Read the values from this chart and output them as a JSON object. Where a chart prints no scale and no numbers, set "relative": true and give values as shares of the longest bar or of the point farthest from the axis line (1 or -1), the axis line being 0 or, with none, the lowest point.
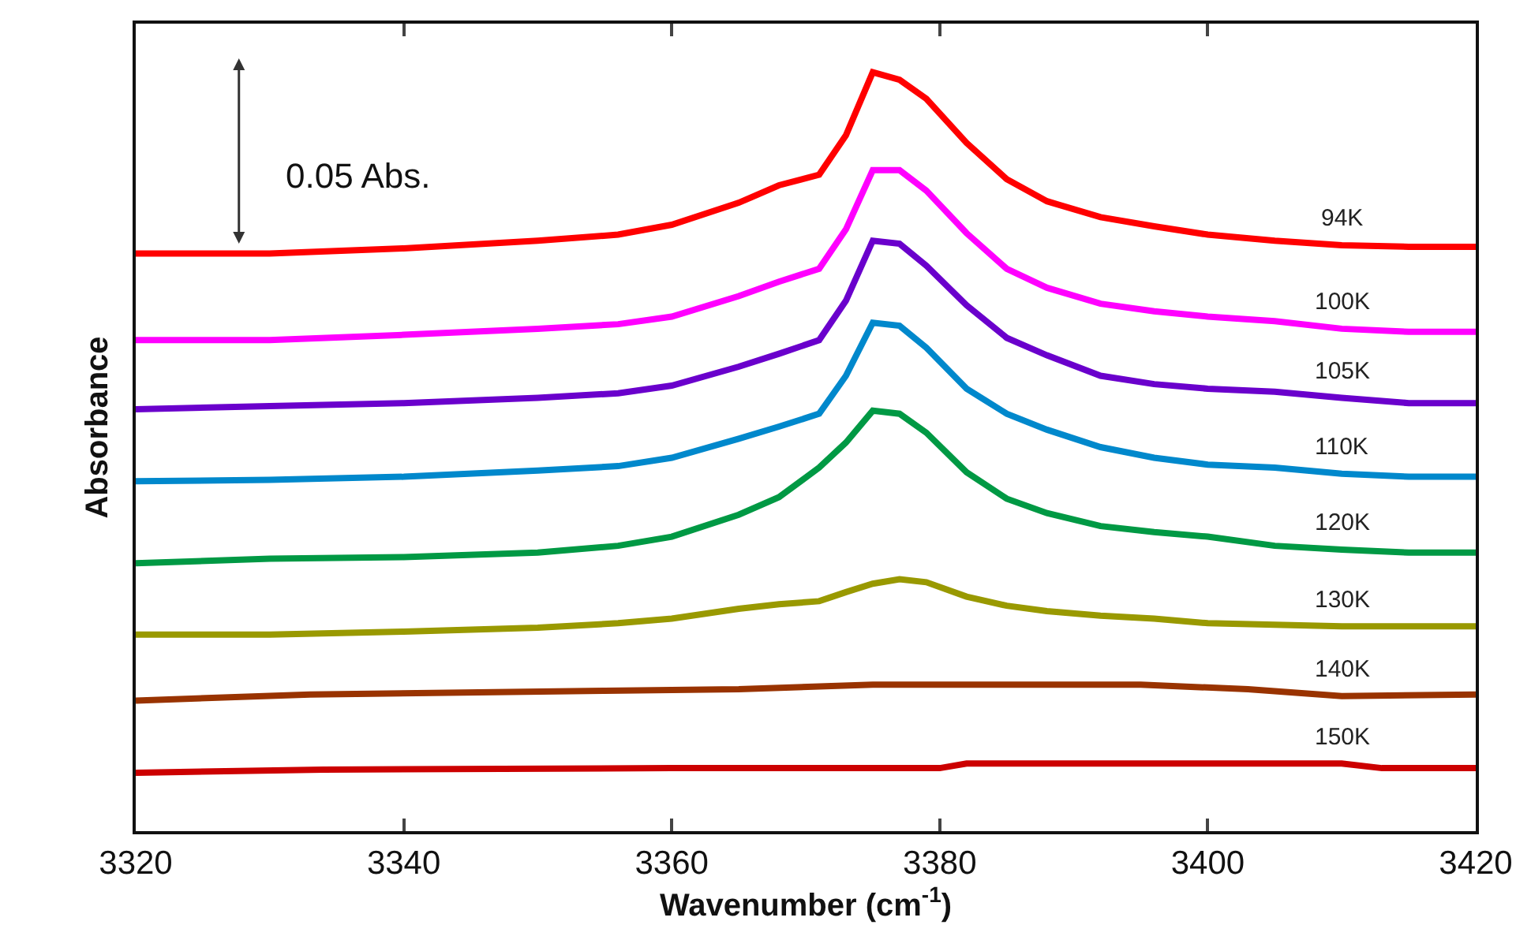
{
  "chart_data": {
    "type": "line",
    "relative": true,
    "xlabel": "Wavenumber (cm$^{-1}$)",
    "ylabel": "Absorbance",
    "xlim": [
      3320,
      3420
    ],
    "xticks": [
      3320,
      3340,
      3360,
      3380,
      3400,
      3420
    ],
    "legend": false,
    "marker": "none",
    "line_style": "solid",
    "annotations": [
      "0.05 Abs."
    ],
    "x": [
      3320,
      3330,
      3340,
      3350,
      3356,
      3360,
      3365,
      3368,
      3371,
      3373,
      3375,
      3377,
      3379,
      3382,
      3385,
      3388,
      3392,
      3396,
      3400,
      3405,
      3410,
      3415,
      3420
    ],
    "series": [
      {
        "name": "94K",
        "color": "#ff0000",
        "values": [
          0.761,
          0.761,
          0.768,
          0.778,
          0.786,
          0.799,
          0.828,
          0.851,
          0.865,
          0.917,
          1.0,
          0.99,
          0.965,
          0.907,
          0.859,
          0.83,
          0.809,
          0.797,
          0.786,
          0.778,
          0.772,
          0.77,
          0.77
        ]
      },
      {
        "name": "100K",
        "color": "#ff00ff",
        "values": [
          0.647,
          0.647,
          0.654,
          0.662,
          0.668,
          0.678,
          0.705,
          0.724,
          0.741,
          0.793,
          0.871,
          0.871,
          0.844,
          0.788,
          0.741,
          0.716,
          0.695,
          0.685,
          0.678,
          0.672,
          0.662,
          0.658,
          0.658
        ]
      },
      {
        "name": "105K",
        "color": "#6a00cc",
        "values": [
          0.556,
          0.56,
          0.564,
          0.571,
          0.577,
          0.587,
          0.612,
          0.629,
          0.647,
          0.699,
          0.778,
          0.774,
          0.745,
          0.693,
          0.65,
          0.627,
          0.6,
          0.589,
          0.583,
          0.579,
          0.571,
          0.564,
          0.564
        ]
      },
      {
        "name": "110K",
        "color": "#0088cc",
        "values": [
          0.461,
          0.463,
          0.467,
          0.475,
          0.481,
          0.492,
          0.517,
          0.533,
          0.55,
          0.6,
          0.67,
          0.666,
          0.637,
          0.583,
          0.55,
          0.529,
          0.506,
          0.492,
          0.483,
          0.479,
          0.471,
          0.467,
          0.467
        ]
      },
      {
        "name": "120K",
        "color": "#009944",
        "values": [
          0.353,
          0.359,
          0.361,
          0.367,
          0.376,
          0.388,
          0.417,
          0.44,
          0.479,
          0.512,
          0.554,
          0.55,
          0.525,
          0.473,
          0.438,
          0.419,
          0.402,
          0.394,
          0.388,
          0.376,
          0.371,
          0.367,
          0.367
        ]
      },
      {
        "name": "130K",
        "color": "#999900",
        "values": [
          0.259,
          0.259,
          0.263,
          0.268,
          0.274,
          0.28,
          0.293,
          0.299,
          0.303,
          0.315,
          0.326,
          0.332,
          0.328,
          0.309,
          0.297,
          0.29,
          0.284,
          0.28,
          0.274,
          0.272,
          0.27,
          0.27,
          0.27
        ]
      },
      {
        "name": "140K",
        "color": "#993300",
        "x": [
          3320,
          3333,
          3355,
          3365,
          3375,
          3395,
          3403,
          3410,
          3420
        ],
        "values": [
          0.172,
          0.18,
          0.185,
          0.187,
          0.193,
          0.193,
          0.187,
          0.178,
          0.18
        ]
      },
      {
        "name": "150K",
        "color": "#cc0000",
        "x": [
          3320,
          3334,
          3360,
          3380,
          3382,
          3410,
          3413,
          3420
        ],
        "values": [
          0.077,
          0.081,
          0.083,
          0.083,
          0.089,
          0.089,
          0.083,
          0.083
        ]
      }
    ]
  }
}
